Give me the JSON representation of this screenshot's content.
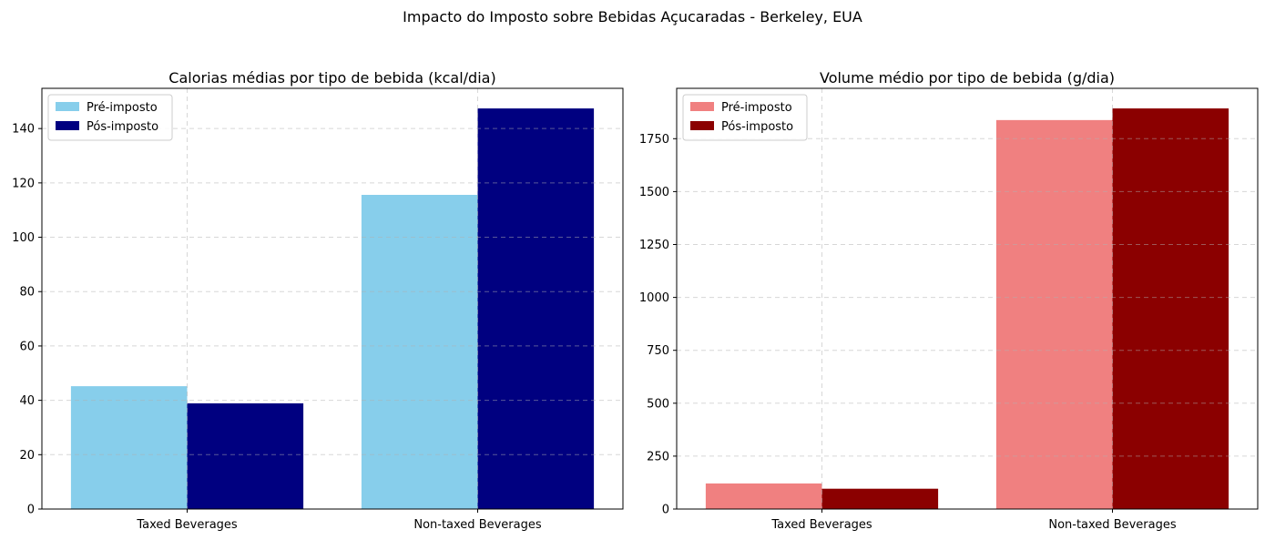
{
  "figure": {
    "suptitle": "Impacto do Imposto sobre Bebidas Açucaradas - Berkeley, EUA"
  },
  "chart_data": [
    {
      "type": "bar",
      "title": "Calorias médias por tipo de bebida (kcal/dia)",
      "xlabel": "",
      "ylabel": "",
      "categories": [
        "Taxed Beverages",
        "Non-taxed Beverages"
      ],
      "series": [
        {
          "name": "Pré-imposto",
          "color": "#87CEEB",
          "values": [
            45.2,
            115.6
          ]
        },
        {
          "name": "Pós-imposto",
          "color": "#000080",
          "values": [
            38.9,
            147.4
          ]
        }
      ],
      "ylim": [
        0,
        154.8
      ],
      "yticks": [
        0,
        20,
        40,
        60,
        80,
        100,
        120,
        140
      ],
      "grid": true,
      "legend": "upper-left"
    },
    {
      "type": "bar",
      "title": "Volume médio por tipo de bebida (g/dia)",
      "xlabel": "",
      "ylabel": "",
      "categories": [
        "Taxed Beverages",
        "Non-taxed Beverages"
      ],
      "series": [
        {
          "name": "Pré-imposto",
          "color": "#F08080",
          "values": [
            121,
            1838
          ]
        },
        {
          "name": "Pós-imposto",
          "color": "#8B0000",
          "values": [
            96,
            1893
          ]
        }
      ],
      "ylim": [
        0,
        1988
      ],
      "yticks": [
        0,
        250,
        500,
        750,
        1000,
        1250,
        1500,
        1750
      ],
      "grid": true,
      "legend": "upper-left"
    }
  ]
}
